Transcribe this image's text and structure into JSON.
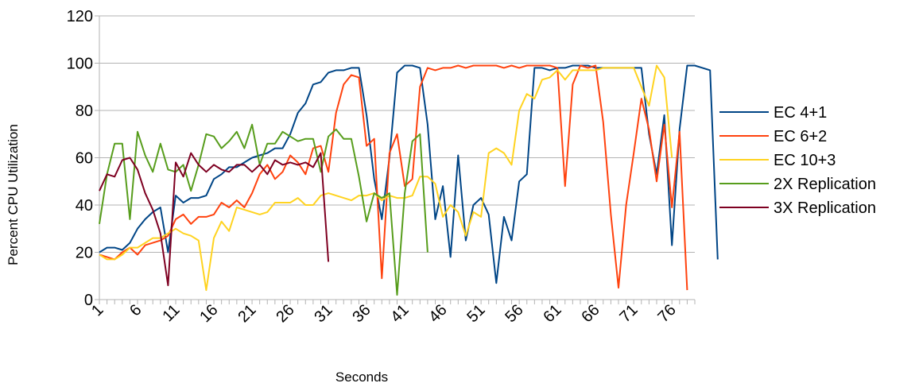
{
  "chart_data": {
    "type": "line",
    "xlabel": "Seconds",
    "ylabel": "Percent CPU Utilization",
    "ylim": [
      0,
      120
    ],
    "yticks": [
      0,
      20,
      40,
      60,
      80,
      100,
      120
    ],
    "xlim": [
      1,
      79
    ],
    "xtick_labels": [
      "1",
      "6",
      "11",
      "16",
      "21",
      "26",
      "31",
      "36",
      "41",
      "46",
      "51",
      "56",
      "61",
      "66",
      "71",
      "76"
    ],
    "grid": "horizontal",
    "legend_position": "right",
    "series": [
      {
        "name": "EC 4+1",
        "color": "#004586",
        "values": [
          20,
          22,
          22,
          21,
          24,
          30,
          34,
          37,
          39,
          20,
          44,
          41,
          43,
          43,
          44,
          51,
          53,
          56,
          56,
          58,
          60,
          61,
          62,
          64,
          64,
          70,
          79,
          83,
          91,
          92,
          96,
          97,
          97,
          98,
          98,
          78,
          51,
          34,
          60,
          96,
          99,
          99,
          98,
          74,
          34,
          48,
          18,
          61,
          25,
          40,
          43,
          36,
          7,
          35,
          25,
          50,
          53,
          98,
          98,
          97,
          98,
          98,
          99,
          99,
          99,
          98,
          98,
          98,
          98,
          98,
          98,
          98,
          70,
          53,
          78,
          23,
          72,
          99,
          99,
          98,
          97,
          17
        ]
      },
      {
        "name": "EC 6+2",
        "color": "#ff420e",
        "values": [
          19,
          18,
          17,
          20,
          22,
          19,
          23,
          24,
          25,
          27,
          34,
          36,
          32,
          35,
          35,
          36,
          41,
          39,
          42,
          39,
          45,
          53,
          57,
          51,
          54,
          61,
          58,
          53,
          64,
          65,
          54,
          79,
          91,
          95,
          94,
          65,
          68,
          9,
          62,
          70,
          48,
          51,
          90,
          98,
          97,
          98,
          98,
          99,
          98,
          99,
          99,
          99,
          99,
          98,
          99,
          98,
          99,
          99,
          99,
          99,
          98,
          48,
          91,
          99,
          98,
          99,
          75,
          36,
          5,
          40,
          62,
          85,
          72,
          50,
          74,
          39,
          71,
          4
        ]
      },
      {
        "name": "EC 10+3",
        "color": "#ffd320",
        "values": [
          19,
          17,
          17,
          19,
          22,
          22,
          24,
          26,
          26,
          28,
          30,
          28,
          27,
          25,
          4,
          26,
          33,
          29,
          39,
          38,
          37,
          36,
          37,
          41,
          41,
          41,
          43,
          40,
          40,
          44,
          45,
          44,
          43,
          42,
          44,
          44,
          45,
          42,
          44,
          43,
          43,
          44,
          52,
          52,
          49,
          35,
          40,
          37,
          27,
          37,
          35,
          62,
          64,
          62,
          57,
          80,
          87,
          85,
          93,
          94,
          97,
          93,
          97,
          97,
          97,
          97,
          98,
          98,
          98,
          98,
          98,
          90,
          82,
          99,
          94,
          60
        ]
      },
      {
        "name": "2X Replication",
        "color": "#579d1c",
        "values": [
          32,
          53,
          66,
          66,
          34,
          71,
          61,
          54,
          66,
          55,
          54,
          57,
          46,
          57,
          70,
          69,
          64,
          67,
          71,
          64,
          74,
          57,
          66,
          66,
          71,
          69,
          67,
          68,
          68,
          54,
          69,
          72,
          68,
          68,
          52,
          33,
          45,
          43,
          45,
          2,
          45,
          67,
          70,
          20
        ]
      },
      {
        "name": "3X Replication",
        "color": "#7e0021",
        "values": [
          46,
          53,
          52,
          59,
          60,
          55,
          45,
          38,
          28,
          6,
          58,
          52,
          62,
          57,
          54,
          57,
          55,
          54,
          57,
          57,
          54,
          57,
          53,
          59,
          57,
          58,
          57,
          58,
          56,
          62,
          16
        ]
      }
    ]
  }
}
